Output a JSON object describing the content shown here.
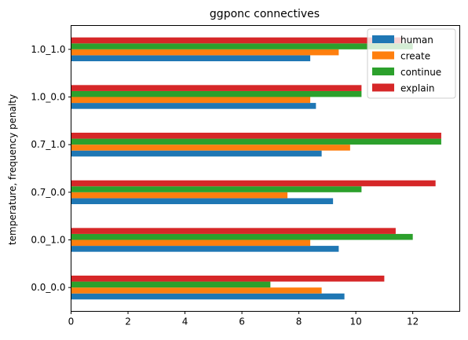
{
  "chart_data": {
    "type": "bar",
    "orientation": "horizontal",
    "title": "ggponc connectives",
    "xlabel": "",
    "ylabel": "temperature, frequency penalty",
    "categories": [
      "0.0_0.0",
      "0.0_1.0",
      "0.7_0.0",
      "0.7_1.0",
      "1.0_0.0",
      "1.0_1.0"
    ],
    "series": [
      {
        "name": "human",
        "color": "#1f77b4",
        "values": [
          9.6,
          9.4,
          9.2,
          8.8,
          8.6,
          8.4
        ]
      },
      {
        "name": "create",
        "color": "#ff7f0e",
        "values": [
          8.8,
          8.4,
          7.6,
          9.8,
          8.4,
          9.4
        ]
      },
      {
        "name": "continue",
        "color": "#2ca02c",
        "values": [
          7.0,
          12.0,
          10.2,
          13.0,
          10.2,
          12.0
        ]
      },
      {
        "name": "explain",
        "color": "#d62728",
        "values": [
          11.0,
          11.4,
          12.8,
          13.0,
          10.2,
          11.6
        ]
      }
    ],
    "xlim": [
      0,
      13.65
    ],
    "xticks": [
      0,
      2,
      4,
      6,
      8,
      10,
      12
    ],
    "grid": false,
    "legend_position": "top-right"
  }
}
